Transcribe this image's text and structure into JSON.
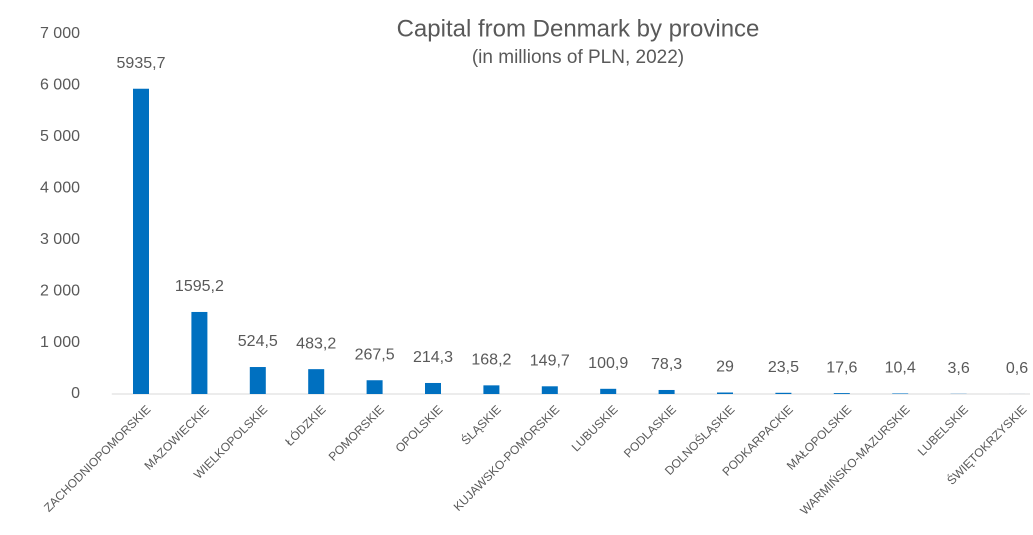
{
  "chart_data": {
    "type": "bar",
    "title": "Capital from Denmark by province",
    "subtitle": "(in millions of PLN, 2022)",
    "categories": [
      "ZACHODNIOPOMORSKIE",
      "MAZOWIECKIE",
      "WIELKOPOLSKIE",
      "ŁÓDZKIE",
      "POMORSKIE",
      "OPOLSKIE",
      "ŚLĄSKIE",
      "KUJAWSKO-POMORSKIE",
      "LUBUSKIE",
      "PODLASKIE",
      "DOLNOŚLĄSKIE",
      "PODKARPACKIE",
      "MAŁOPOLSKIE",
      "WARMIŃSKO-MAZURSKIE",
      "LUBELSKIE",
      "ŚWIĘTOKRZYSKIE"
    ],
    "values": [
      5935.7,
      1595.2,
      524.5,
      483.2,
      267.5,
      214.3,
      168.2,
      149.7,
      100.9,
      78.3,
      29,
      23.5,
      17.6,
      10.4,
      3.6,
      0.6
    ],
    "value_labels": [
      "5935,7",
      "1595,2",
      "524,5",
      "483,2",
      "267,5",
      "214,3",
      "168,2",
      "149,7",
      "100,9",
      "78,3",
      "29",
      "23,5",
      "17,6",
      "10,4",
      "3,6",
      "0,6"
    ],
    "color": "#0070c0",
    "ylim": [
      0,
      7000
    ],
    "yticks": [
      0,
      {
        "value": 1000,
        "label": "1 000"
      },
      {
        "value": 2000,
        "label": "2 000"
      },
      {
        "value": 3000,
        "label": "3 000"
      },
      {
        "value": 4000,
        "label": "4 000"
      },
      {
        "value": 5000,
        "label": "5 000"
      },
      {
        "value": 6000,
        "label": "6 000"
      },
      {
        "value": 7000,
        "label": "7 000"
      }
    ],
    "grid": false
  }
}
